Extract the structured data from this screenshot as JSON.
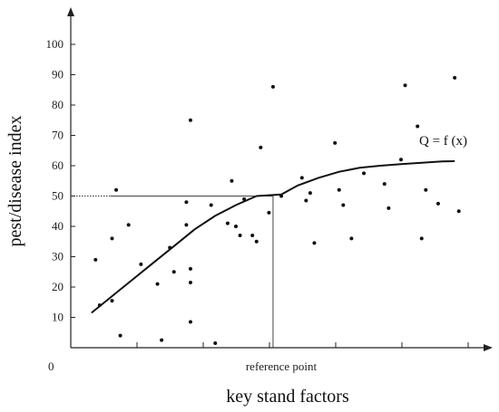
{
  "chart_data": {
    "type": "scatter",
    "xlabel": "key stand factors",
    "ylabel": "pest/disease index",
    "origin_label": "0",
    "ylim": [
      0,
      100
    ],
    "y_ticks": [
      10,
      20,
      30,
      40,
      50,
      60,
      70,
      80,
      90,
      100
    ],
    "x_ticks_count": 6,
    "x_marker_label": "reference point",
    "curve_label": "Q = f (x)",
    "reference_y": 50,
    "reference_x_frac": 0.49,
    "points": [
      [
        0.06,
        29
      ],
      [
        0.07,
        14
      ],
      [
        0.1,
        15.5
      ],
      [
        0.1,
        36
      ],
      [
        0.11,
        52
      ],
      [
        0.12,
        4
      ],
      [
        0.14,
        40.5
      ],
      [
        0.17,
        27.5
      ],
      [
        0.21,
        21
      ],
      [
        0.22,
        2.5
      ],
      [
        0.24,
        33
      ],
      [
        0.25,
        25
      ],
      [
        0.28,
        40.5
      ],
      [
        0.28,
        48
      ],
      [
        0.29,
        75
      ],
      [
        0.29,
        26
      ],
      [
        0.29,
        21.5
      ],
      [
        0.29,
        8.5
      ],
      [
        0.34,
        47
      ],
      [
        0.35,
        1.5
      ],
      [
        0.38,
        41
      ],
      [
        0.39,
        55
      ],
      [
        0.4,
        40
      ],
      [
        0.41,
        37
      ],
      [
        0.42,
        49
      ],
      [
        0.44,
        37
      ],
      [
        0.45,
        35
      ],
      [
        0.46,
        66
      ],
      [
        0.48,
        44.5
      ],
      [
        0.49,
        86
      ],
      [
        0.51,
        50
      ],
      [
        0.56,
        56
      ],
      [
        0.57,
        48.5
      ],
      [
        0.58,
        51
      ],
      [
        0.59,
        34.5
      ],
      [
        0.64,
        67.5
      ],
      [
        0.65,
        52
      ],
      [
        0.66,
        47
      ],
      [
        0.68,
        36
      ],
      [
        0.71,
        57.5
      ],
      [
        0.76,
        54
      ],
      [
        0.77,
        46
      ],
      [
        0.8,
        62
      ],
      [
        0.81,
        86.5
      ],
      [
        0.84,
        73
      ],
      [
        0.85,
        36
      ],
      [
        0.86,
        52
      ],
      [
        0.89,
        47.5
      ],
      [
        0.93,
        89
      ],
      [
        0.94,
        45
      ]
    ],
    "curve": [
      [
        0.05,
        11.5
      ],
      [
        0.1,
        17
      ],
      [
        0.15,
        22.5
      ],
      [
        0.2,
        28
      ],
      [
        0.25,
        33.5
      ],
      [
        0.3,
        39
      ],
      [
        0.35,
        43.5
      ],
      [
        0.4,
        47
      ],
      [
        0.45,
        50
      ],
      [
        0.51,
        50.5
      ],
      [
        0.55,
        53.5
      ],
      [
        0.6,
        56
      ],
      [
        0.65,
        58
      ],
      [
        0.7,
        59.3
      ],
      [
        0.75,
        60
      ],
      [
        0.8,
        60.5
      ],
      [
        0.85,
        61
      ],
      [
        0.9,
        61.4
      ],
      [
        0.93,
        61.5
      ]
    ]
  }
}
